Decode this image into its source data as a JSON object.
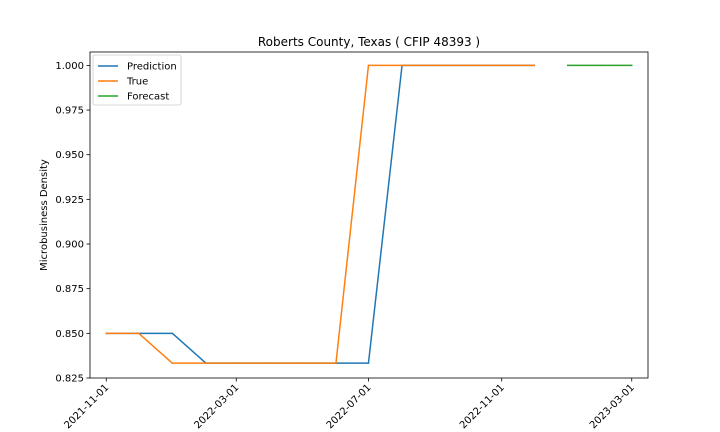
{
  "chart_data": {
    "type": "line",
    "title": "Roberts County, Texas ( CFIP 48393 )",
    "xlabel": "",
    "ylabel": "Microbusiness Density",
    "ylim": [
      0.825,
      1.0075
    ],
    "xlim": [
      "2021-10-17",
      "2023-03-16"
    ],
    "y_ticks": [
      0.825,
      0.85,
      0.875,
      0.9,
      0.925,
      0.95,
      0.975,
      1.0
    ],
    "y_tick_labels": [
      "0.825",
      "0.850",
      "0.875",
      "0.900",
      "0.925",
      "0.950",
      "0.975",
      "1.000"
    ],
    "x_ticks": [
      "2021-11-01",
      "2022-03-01",
      "2022-07-01",
      "2022-11-01",
      "2023-03-01"
    ],
    "x_tick_labels": [
      "2021-11-01",
      "2022-03-01",
      "2022-07-01",
      "2022-11-01",
      "2023-03-01"
    ],
    "grid": false,
    "legend_position": "top-left",
    "series": [
      {
        "name": "Prediction",
        "color": "#1f77b4",
        "x": [
          "2021-11-01",
          "2021-12-01",
          "2022-01-01",
          "2022-02-01",
          "2022-03-01",
          "2022-04-01",
          "2022-05-01",
          "2022-06-01",
          "2022-07-01",
          "2022-08-01",
          "2022-09-01",
          "2022-10-01",
          "2022-11-01",
          "2022-12-01"
        ],
        "values": [
          0.85,
          0.85,
          0.85,
          0.8333,
          0.8333,
          0.8333,
          0.8333,
          0.8333,
          0.8333,
          1.0,
          1.0,
          1.0,
          1.0,
          1.0
        ]
      },
      {
        "name": "True",
        "color": "#ff7f0e",
        "x": [
          "2021-11-01",
          "2021-12-01",
          "2022-01-01",
          "2022-02-01",
          "2022-03-01",
          "2022-04-01",
          "2022-05-01",
          "2022-06-01",
          "2022-07-01",
          "2022-08-01",
          "2022-09-01",
          "2022-10-01",
          "2022-11-01",
          "2022-12-01"
        ],
        "values": [
          0.85,
          0.85,
          0.8333,
          0.8333,
          0.8333,
          0.8333,
          0.8333,
          0.8333,
          1.0,
          1.0,
          1.0,
          1.0,
          1.0,
          1.0
        ]
      },
      {
        "name": "Forecast",
        "color": "#2ca02c",
        "x": [
          "2023-01-01",
          "2023-02-01",
          "2023-03-01"
        ],
        "values": [
          1.0,
          1.0,
          1.0
        ]
      }
    ]
  }
}
